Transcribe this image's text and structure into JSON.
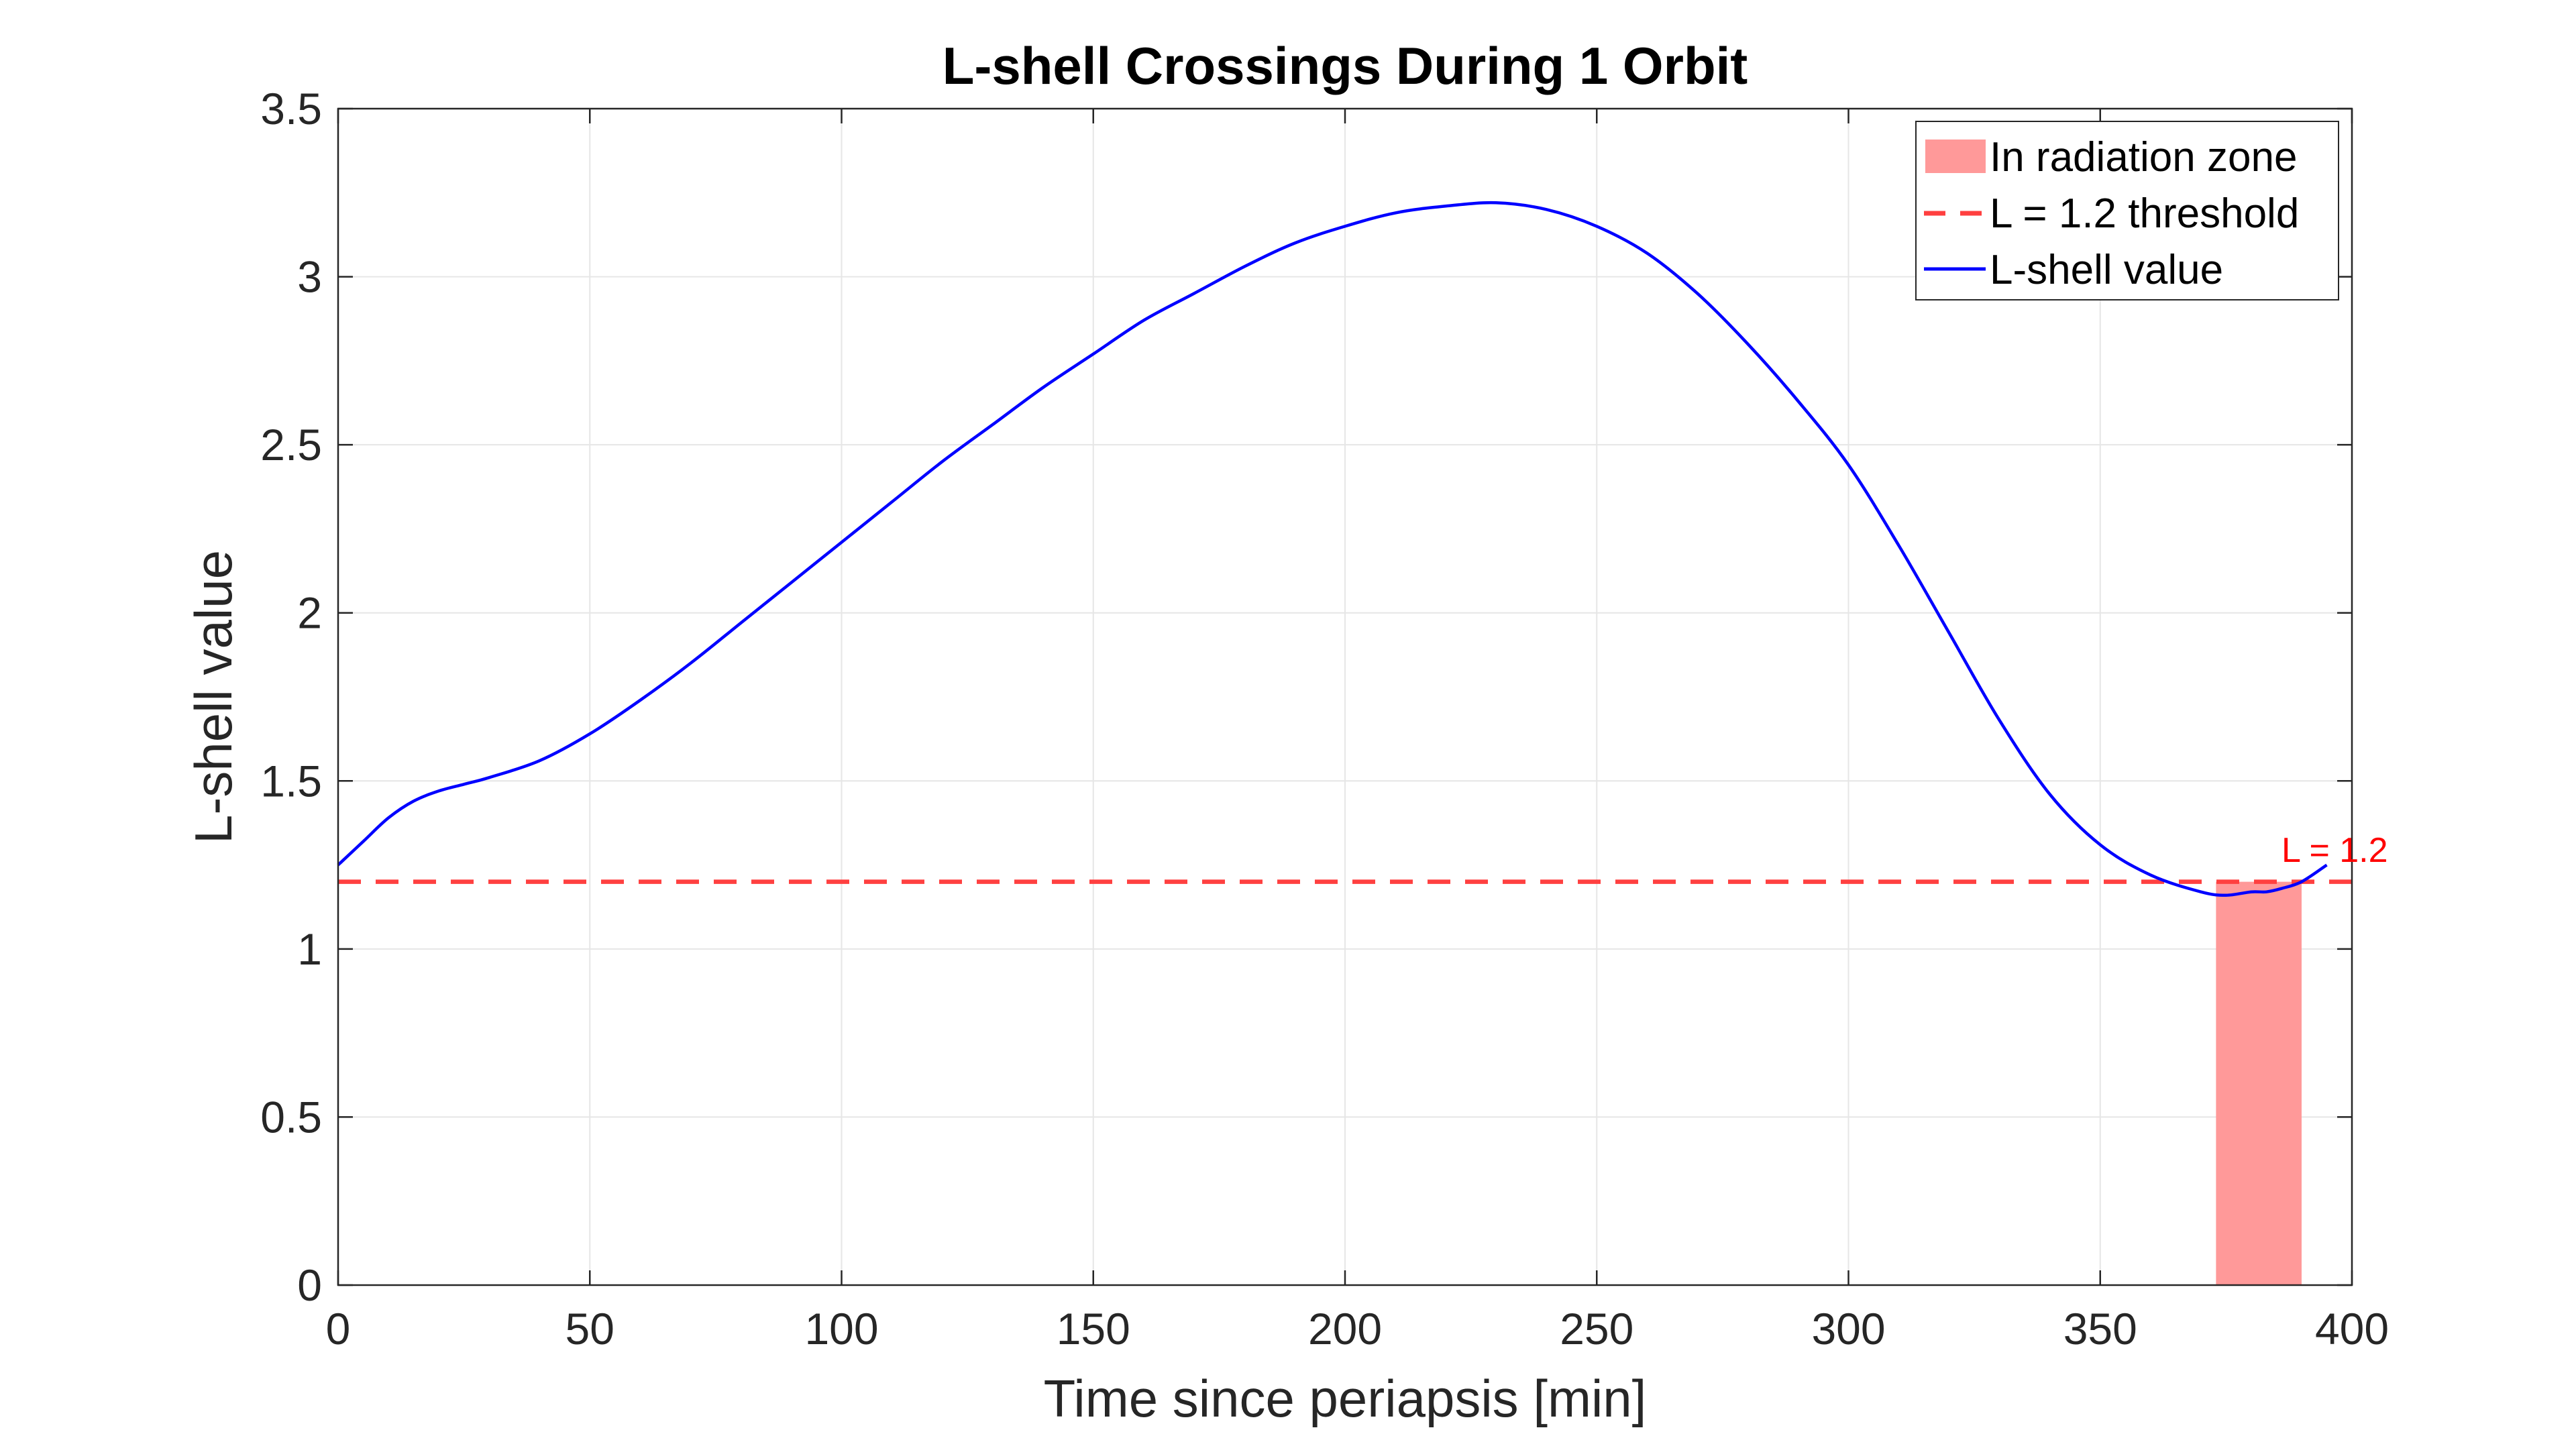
{
  "chart_data": {
    "type": "line",
    "title": "L-shell Crossings During 1 Orbit",
    "xlabel": "Time since periapsis [min]",
    "ylabel": "L-shell value",
    "xlim": [
      0,
      400
    ],
    "ylim": [
      0,
      3.5
    ],
    "xticks": [
      0,
      50,
      100,
      150,
      200,
      250,
      300,
      350,
      400
    ],
    "yticks": [
      0,
      0.5,
      1,
      1.5,
      2,
      2.5,
      3,
      3.5
    ],
    "xtick_labels": [
      "0",
      "50",
      "100",
      "150",
      "200",
      "250",
      "300",
      "350",
      "400"
    ],
    "ytick_labels": [
      "0",
      "0.5",
      "1",
      "1.5",
      "2",
      "2.5",
      "3",
      "3.5"
    ],
    "grid": true,
    "legend_position": "top-right",
    "series": [
      {
        "name": "L-shell value",
        "color": "#0000ff",
        "x": [
          0,
          5,
          10,
          15,
          20,
          25,
          30,
          40,
          50,
          60,
          70,
          80,
          90,
          100,
          110,
          120,
          130,
          140,
          150,
          160,
          170,
          180,
          190,
          200,
          210,
          220,
          230,
          240,
          250,
          260,
          270,
          280,
          290,
          300,
          310,
          320,
          330,
          340,
          350,
          360,
          370,
          375,
          380,
          383,
          386,
          390,
          395
        ],
        "y": [
          1.25,
          1.32,
          1.39,
          1.44,
          1.47,
          1.49,
          1.51,
          1.56,
          1.64,
          1.74,
          1.85,
          1.97,
          2.09,
          2.21,
          2.33,
          2.45,
          2.56,
          2.67,
          2.77,
          2.87,
          2.95,
          3.03,
          3.1,
          3.15,
          3.19,
          3.21,
          3.22,
          3.2,
          3.15,
          3.07,
          2.95,
          2.8,
          2.63,
          2.44,
          2.2,
          1.94,
          1.68,
          1.46,
          1.31,
          1.22,
          1.17,
          1.16,
          1.17,
          1.17,
          1.18,
          1.2,
          1.25
        ]
      }
    ],
    "threshold": {
      "name": "L = 1.2 threshold",
      "value": 1.2,
      "color": "#ff4040",
      "label": "L = 1.2"
    },
    "zones": [
      {
        "name": "In radiation zone",
        "x_start": 373,
        "x_end": 390,
        "y_top": 1.2,
        "color": "#ff9999"
      }
    ]
  }
}
